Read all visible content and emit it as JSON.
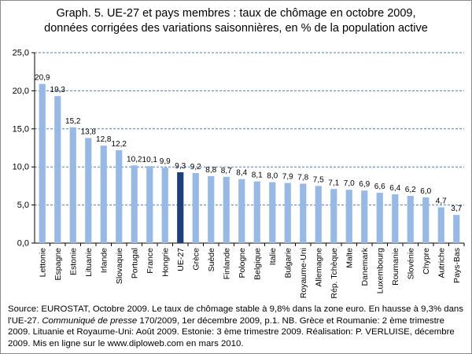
{
  "title_line1": "Graph. 5. UE-27 et pays membres : taux de chômage en octobre 2009,",
  "title_line2": "données corrigées des variations saisonnières, en % de la population active",
  "source": {
    "part1": "Source: EUROSTAT, Octobre 2009. Le taux de chômage stable à 9,8% dans la zone euro. En hausse à 9,3% dans l'UE-27. ",
    "italic": "Communiqué de presse",
    "part2": " 170/2009, 1er décembre 2009, p.1. NB. Grèce et Roumanie: 2 ème trimestre 2009. Lituanie et Royaume-Uni: Août 2009. Estonie: 3 ème trimestre 2009. Réalisation: P. VERLUISE, décembre 2009. Mis en ligne sur le www.diploweb.com en mars 2010."
  },
  "colors": {
    "bar": "#98b9e3",
    "highlight": "#1f3f7a",
    "gridline": "#4f81bd"
  },
  "chart_data": {
    "type": "bar",
    "title": "Graph. 5. UE-27 et pays membres : taux de chômage en octobre 2009, données corrigées des variations saisonnières, en % de la population active",
    "xlabel": "",
    "ylabel": "",
    "ylim": [
      0,
      25
    ],
    "yticks": [
      "0,0",
      "5,0",
      "10,0",
      "15,0",
      "20,0",
      "25,0"
    ],
    "grid": true,
    "highlight_category": "UE-27",
    "categories": [
      "Lettonie",
      "Espagne",
      "Estonie",
      "Lituanie",
      "Irlande",
      "Slovaquie",
      "Portugal",
      "France",
      "Hongrie",
      "UE-27",
      "Grèce",
      "Suède",
      "Finlande",
      "Pologne",
      "Belgique",
      "Italie",
      "Bulgarie",
      "Royaume-Uni",
      "Allemagne",
      "Rép. Tchèque",
      "Malte",
      "Danemark",
      "Luxembourg",
      "Roumanie",
      "Slovénie",
      "Chypre",
      "Autriche",
      "Pays-Bas"
    ],
    "values": [
      20.9,
      19.3,
      15.2,
      13.8,
      12.8,
      12.2,
      10.2,
      10.1,
      9.9,
      9.3,
      9.2,
      8.8,
      8.7,
      8.4,
      8.1,
      8.0,
      7.9,
      7.8,
      7.5,
      7.1,
      7.0,
      6.9,
      6.6,
      6.4,
      6.2,
      6.0,
      4.7,
      3.7
    ],
    "labels": [
      "20,9",
      "19,3",
      "15,2",
      "13,8",
      "12,8",
      "12,2",
      "10,2",
      "10,1",
      "9,9",
      "9,3",
      "9,2",
      "8,8",
      "8,7",
      "8,4",
      "8,1",
      "8,0",
      "7,9",
      "7,8",
      "7,5",
      "7,1",
      "7,0",
      "6,9",
      "6,6",
      "6,4",
      "6,2",
      "6,0",
      "4,7",
      "3,7"
    ]
  }
}
